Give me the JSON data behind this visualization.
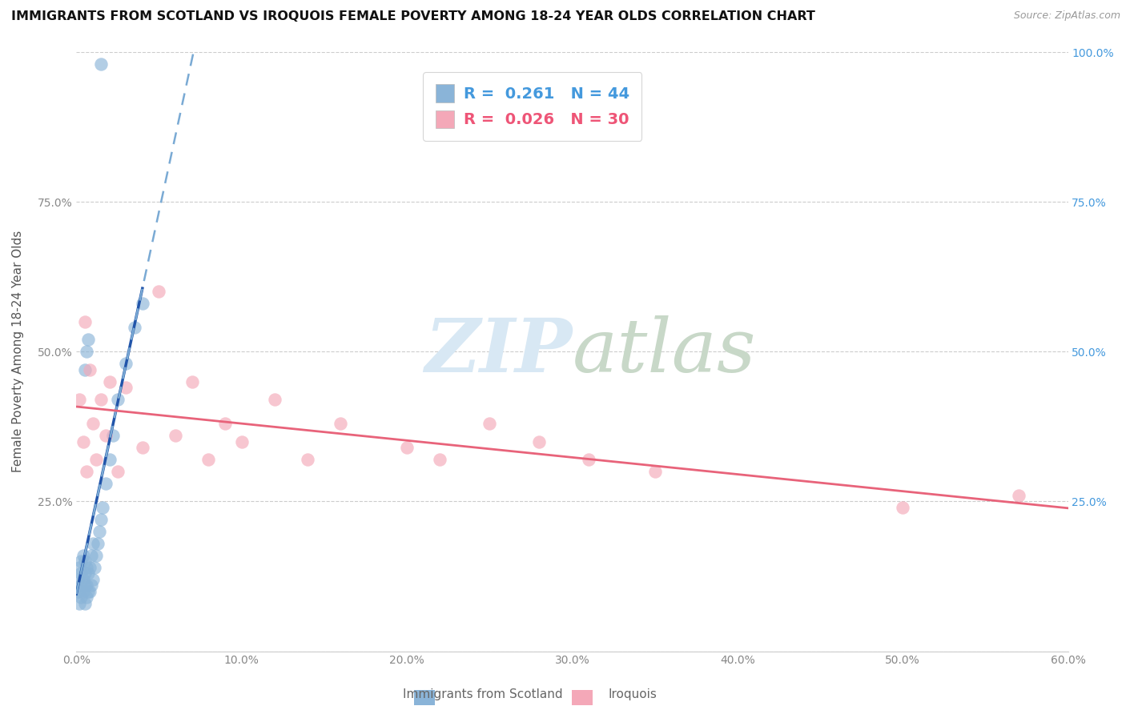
{
  "title": "IMMIGRANTS FROM SCOTLAND VS IROQUOIS FEMALE POVERTY AMONG 18-24 YEAR OLDS CORRELATION CHART",
  "source": "Source: ZipAtlas.com",
  "ylabel": "Female Poverty Among 18-24 Year Olds",
  "xlim": [
    0.0,
    0.6
  ],
  "ylim": [
    0.0,
    1.0
  ],
  "xtick_vals": [
    0.0,
    0.1,
    0.2,
    0.3,
    0.4,
    0.5,
    0.6
  ],
  "xtick_labels": [
    "0.0%",
    "10.0%",
    "20.0%",
    "30.0%",
    "40.0%",
    "50.0%",
    "60.0%"
  ],
  "ytick_vals": [
    0.0,
    0.25,
    0.5,
    0.75,
    1.0
  ],
  "ytick_labels_left": [
    "",
    "25.0%",
    "50.0%",
    "75.0%",
    ""
  ],
  "ytick_labels_right": [
    "",
    "25.0%",
    "50.0%",
    "75.0%",
    "100.0%"
  ],
  "color_blue": "#8ab4d8",
  "color_pink": "#f4a8b8",
  "trendline_blue_solid": "#2255aa",
  "trendline_blue_dashed": "#7aaad4",
  "trendline_pink": "#e8637a",
  "watermark_zip": "ZIP",
  "watermark_atlas": "atlas",
  "legend_blue_label": "R =  0.261   N = 44",
  "legend_pink_label": "R =  0.026   N = 30",
  "legend_blue_R": "R =  0.261",
  "legend_blue_N": "N = 44",
  "legend_pink_R": "R =  0.026",
  "legend_pink_N": "N = 30",
  "scotland_x": [
    0.001,
    0.001,
    0.002,
    0.002,
    0.002,
    0.003,
    0.003,
    0.003,
    0.003,
    0.004,
    0.004,
    0.004,
    0.005,
    0.005,
    0.005,
    0.005,
    0.006,
    0.006,
    0.006,
    0.007,
    0.007,
    0.008,
    0.008,
    0.009,
    0.009,
    0.01,
    0.01,
    0.011,
    0.012,
    0.013,
    0.014,
    0.015,
    0.016,
    0.018,
    0.02,
    0.022,
    0.025,
    0.03,
    0.035,
    0.04,
    0.005,
    0.006,
    0.007,
    0.015
  ],
  "scotland_y": [
    0.1,
    0.12,
    0.08,
    0.1,
    0.14,
    0.09,
    0.11,
    0.13,
    0.15,
    0.1,
    0.12,
    0.16,
    0.08,
    0.11,
    0.13,
    0.15,
    0.09,
    0.11,
    0.14,
    0.1,
    0.13,
    0.1,
    0.14,
    0.11,
    0.16,
    0.12,
    0.18,
    0.14,
    0.16,
    0.18,
    0.2,
    0.22,
    0.24,
    0.28,
    0.32,
    0.36,
    0.42,
    0.48,
    0.54,
    0.58,
    0.47,
    0.5,
    0.52,
    0.98
  ],
  "iroquois_x": [
    0.002,
    0.004,
    0.005,
    0.006,
    0.008,
    0.01,
    0.012,
    0.015,
    0.018,
    0.02,
    0.025,
    0.03,
    0.04,
    0.05,
    0.06,
    0.07,
    0.08,
    0.09,
    0.1,
    0.12,
    0.14,
    0.16,
    0.2,
    0.22,
    0.25,
    0.28,
    0.31,
    0.35,
    0.5,
    0.57
  ],
  "iroquois_y": [
    0.42,
    0.35,
    0.55,
    0.3,
    0.47,
    0.38,
    0.32,
    0.42,
    0.36,
    0.45,
    0.3,
    0.44,
    0.34,
    0.6,
    0.36,
    0.45,
    0.32,
    0.38,
    0.35,
    0.42,
    0.32,
    0.38,
    0.34,
    0.32,
    0.38,
    0.35,
    0.32,
    0.3,
    0.24,
    0.26
  ]
}
